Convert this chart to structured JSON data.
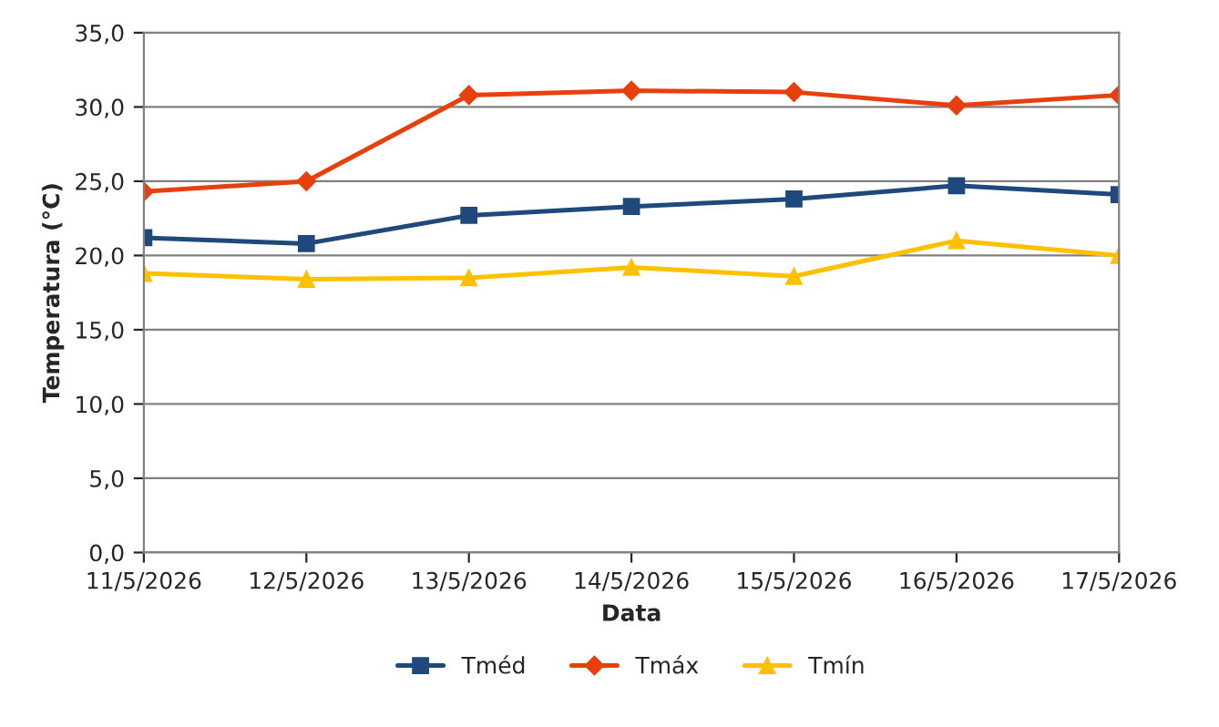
{
  "chart_data": {
    "type": "line",
    "xlabel": "Data",
    "ylabel": "Temperatura (°C)",
    "categories": [
      "11/5/2026",
      "12/5/2026",
      "13/5/2026",
      "14/5/2026",
      "15/5/2026",
      "16/5/2026",
      "17/5/2026"
    ],
    "series": [
      {
        "name": "Tméd",
        "color": "#1f497d",
        "marker": "square",
        "values": [
          21.2,
          20.8,
          22.7,
          23.3,
          23.8,
          24.7,
          24.1
        ]
      },
      {
        "name": "Tmáx",
        "color": "#e8400c",
        "marker": "diamond",
        "values": [
          24.3,
          25.0,
          30.8,
          31.1,
          31.0,
          30.1,
          30.8
        ]
      },
      {
        "name": "Tmín",
        "color": "#ffc000",
        "marker": "triangle",
        "values": [
          18.8,
          18.4,
          18.5,
          19.2,
          18.6,
          21.0,
          20.0
        ]
      }
    ],
    "ylim": [
      0,
      35
    ],
    "yticks": [
      {
        "value": 0,
        "label": "0,0"
      },
      {
        "value": 5,
        "label": "5,0"
      },
      {
        "value": 10,
        "label": "10,0"
      },
      {
        "value": 15,
        "label": "15,0"
      },
      {
        "value": 20,
        "label": "20,0"
      },
      {
        "value": 25,
        "label": "25,0"
      },
      {
        "value": 30,
        "label": "30,0"
      },
      {
        "value": 35,
        "label": "35,0"
      }
    ],
    "grid": "y",
    "legend": "bottom",
    "line_style": "solid"
  }
}
